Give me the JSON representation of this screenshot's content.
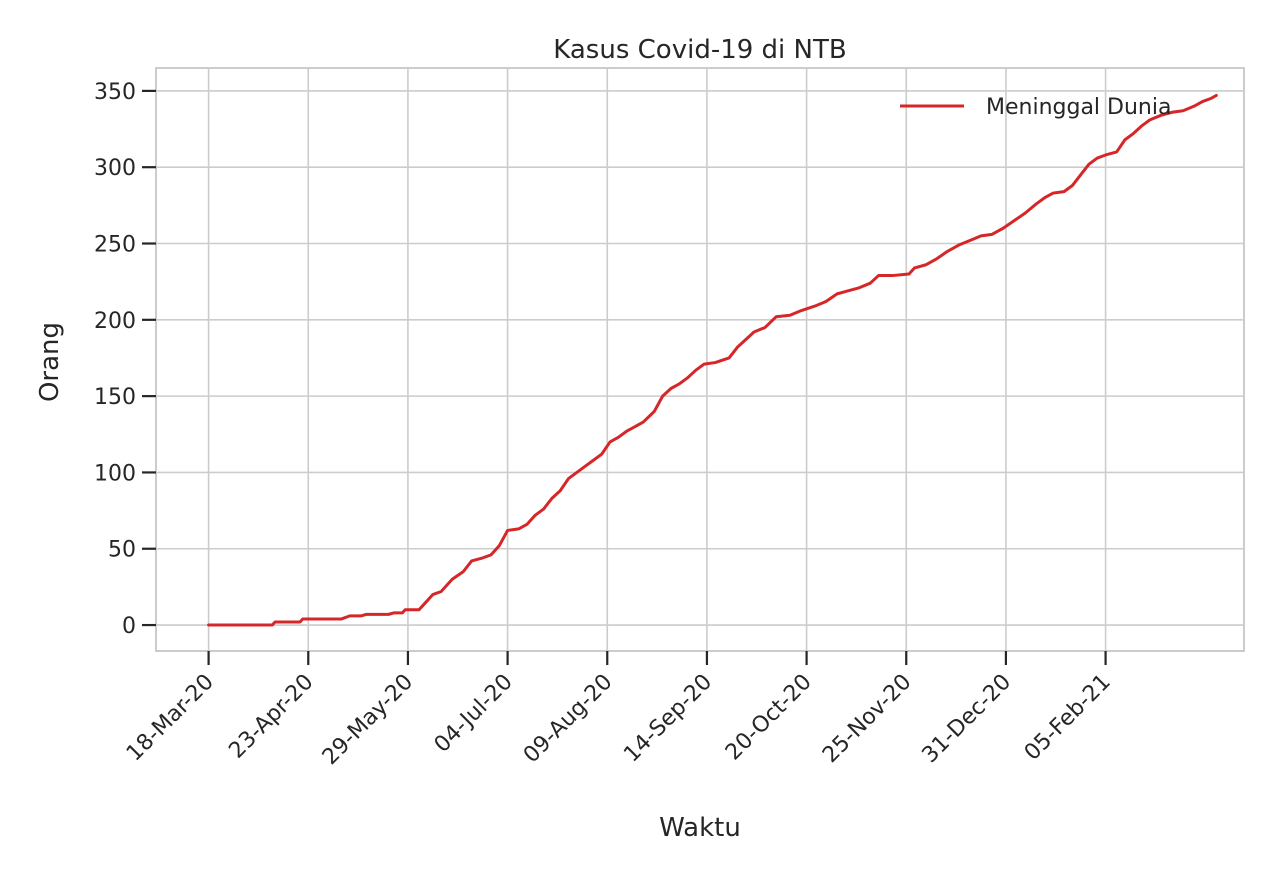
{
  "chart_data": {
    "type": "line",
    "title": "Kasus Covid-19 di NTB",
    "xlabel": "Waktu",
    "ylabel": "Orang",
    "x_start": "2020-03-18",
    "x_end": "2021-03-17",
    "xlim": [
      "2020-02-28",
      "2021-03-27"
    ],
    "ylim": [
      -17,
      365
    ],
    "yticks": [
      0,
      50,
      100,
      150,
      200,
      250,
      300,
      350
    ],
    "xticks": [
      {
        "date": "2020-03-18",
        "label": "18-Mar-20"
      },
      {
        "date": "2020-04-23",
        "label": "23-Apr-20"
      },
      {
        "date": "2020-05-29",
        "label": "29-May-20"
      },
      {
        "date": "2020-07-04",
        "label": "04-Jul-20"
      },
      {
        "date": "2020-08-09",
        "label": "09-Aug-20"
      },
      {
        "date": "2020-09-14",
        "label": "14-Sep-20"
      },
      {
        "date": "2020-10-20",
        "label": "20-Oct-20"
      },
      {
        "date": "2020-11-25",
        "label": "25-Nov-20"
      },
      {
        "date": "2020-12-31",
        "label": "31-Dec-20"
      },
      {
        "date": "2021-02-05",
        "label": "05-Feb-21"
      }
    ],
    "grid": true,
    "legend": {
      "placement": "top-right"
    },
    "series": [
      {
        "name": "Meninggal Dunia",
        "color": "#d62728",
        "points": [
          [
            "2020-03-18",
            0
          ],
          [
            "2020-04-10",
            0
          ],
          [
            "2020-04-11",
            2
          ],
          [
            "2020-04-20",
            2
          ],
          [
            "2020-04-21",
            4
          ],
          [
            "2020-05-05",
            4
          ],
          [
            "2020-05-08",
            6
          ],
          [
            "2020-05-12",
            6
          ],
          [
            "2020-05-14",
            7
          ],
          [
            "2020-05-22",
            7
          ],
          [
            "2020-05-24",
            8
          ],
          [
            "2020-05-27",
            8
          ],
          [
            "2020-05-28",
            10
          ],
          [
            "2020-06-02",
            10
          ],
          [
            "2020-06-04",
            14
          ],
          [
            "2020-06-07",
            20
          ],
          [
            "2020-06-10",
            22
          ],
          [
            "2020-06-14",
            30
          ],
          [
            "2020-06-18",
            35
          ],
          [
            "2020-06-21",
            42
          ],
          [
            "2020-06-25",
            44
          ],
          [
            "2020-06-28",
            46
          ],
          [
            "2020-07-01",
            52
          ],
          [
            "2020-07-04",
            62
          ],
          [
            "2020-07-08",
            63
          ],
          [
            "2020-07-11",
            66
          ],
          [
            "2020-07-14",
            72
          ],
          [
            "2020-07-17",
            76
          ],
          [
            "2020-07-20",
            83
          ],
          [
            "2020-07-23",
            88
          ],
          [
            "2020-07-26",
            96
          ],
          [
            "2020-07-29",
            100
          ],
          [
            "2020-08-01",
            104
          ],
          [
            "2020-08-04",
            108
          ],
          [
            "2020-08-07",
            112
          ],
          [
            "2020-08-10",
            120
          ],
          [
            "2020-08-13",
            123
          ],
          [
            "2020-08-16",
            127
          ],
          [
            "2020-08-19",
            130
          ],
          [
            "2020-08-22",
            133
          ],
          [
            "2020-08-26",
            140
          ],
          [
            "2020-08-29",
            150
          ],
          [
            "2020-09-01",
            155
          ],
          [
            "2020-09-04",
            158
          ],
          [
            "2020-09-07",
            162
          ],
          [
            "2020-09-10",
            167
          ],
          [
            "2020-09-13",
            171
          ],
          [
            "2020-09-17",
            172
          ],
          [
            "2020-09-22",
            175
          ],
          [
            "2020-09-25",
            182
          ],
          [
            "2020-09-28",
            187
          ],
          [
            "2020-10-01",
            192
          ],
          [
            "2020-10-05",
            195
          ],
          [
            "2020-10-09",
            202
          ],
          [
            "2020-10-14",
            203
          ],
          [
            "2020-10-18",
            206
          ],
          [
            "2020-10-23",
            209
          ],
          [
            "2020-10-27",
            212
          ],
          [
            "2020-10-31",
            217
          ],
          [
            "2020-11-04",
            219
          ],
          [
            "2020-11-08",
            221
          ],
          [
            "2020-11-12",
            224
          ],
          [
            "2020-11-15",
            229
          ],
          [
            "2020-11-20",
            229
          ],
          [
            "2020-11-26",
            230
          ],
          [
            "2020-11-28",
            234
          ],
          [
            "2020-12-02",
            236
          ],
          [
            "2020-12-06",
            240
          ],
          [
            "2020-12-10",
            245
          ],
          [
            "2020-12-14",
            249
          ],
          [
            "2020-12-18",
            252
          ],
          [
            "2020-12-22",
            255
          ],
          [
            "2020-12-26",
            256
          ],
          [
            "2020-12-30",
            260
          ],
          [
            "2021-01-03",
            265
          ],
          [
            "2021-01-07",
            270
          ],
          [
            "2021-01-11",
            276
          ],
          [
            "2021-01-14",
            280
          ],
          [
            "2021-01-17",
            283
          ],
          [
            "2021-01-21",
            284
          ],
          [
            "2021-01-24",
            288
          ],
          [
            "2021-01-27",
            295
          ],
          [
            "2021-01-30",
            302
          ],
          [
            "2021-02-02",
            306
          ],
          [
            "2021-02-05",
            308
          ],
          [
            "2021-02-09",
            310
          ],
          [
            "2021-02-12",
            318
          ],
          [
            "2021-02-15",
            322
          ],
          [
            "2021-02-18",
            327
          ],
          [
            "2021-02-21",
            331
          ],
          [
            "2021-02-25",
            334
          ],
          [
            "2021-03-01",
            336
          ],
          [
            "2021-03-05",
            337
          ],
          [
            "2021-03-09",
            340
          ],
          [
            "2021-03-12",
            343
          ],
          [
            "2021-03-15",
            345
          ],
          [
            "2021-03-17",
            347
          ]
        ]
      }
    ]
  }
}
